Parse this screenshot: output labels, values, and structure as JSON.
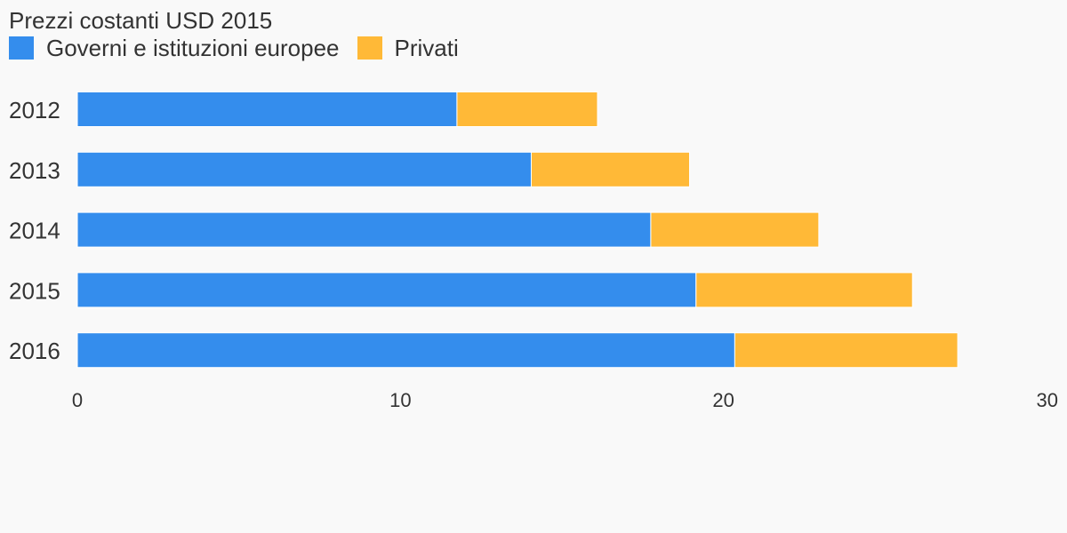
{
  "chart_data": {
    "type": "bar",
    "orientation": "horizontal",
    "stacked": true,
    "subtitle": "Prezzi costanti USD 2015",
    "categories": [
      "2012",
      "2013",
      "2014",
      "2015",
      "2016"
    ],
    "series": [
      {
        "name": "Governi e istituzioni europee",
        "color": "#348ded",
        "values": [
          11.75,
          14.05,
          17.75,
          19.15,
          20.35
        ]
      },
      {
        "name": "Privati",
        "color": "#ffb937",
        "values": [
          4.35,
          4.9,
          5.2,
          6.7,
          6.9
        ]
      }
    ],
    "xlim": [
      0,
      30
    ],
    "xticks": [
      "0",
      "10",
      "20",
      "30"
    ],
    "grid": false,
    "legend_position": "top-left"
  }
}
